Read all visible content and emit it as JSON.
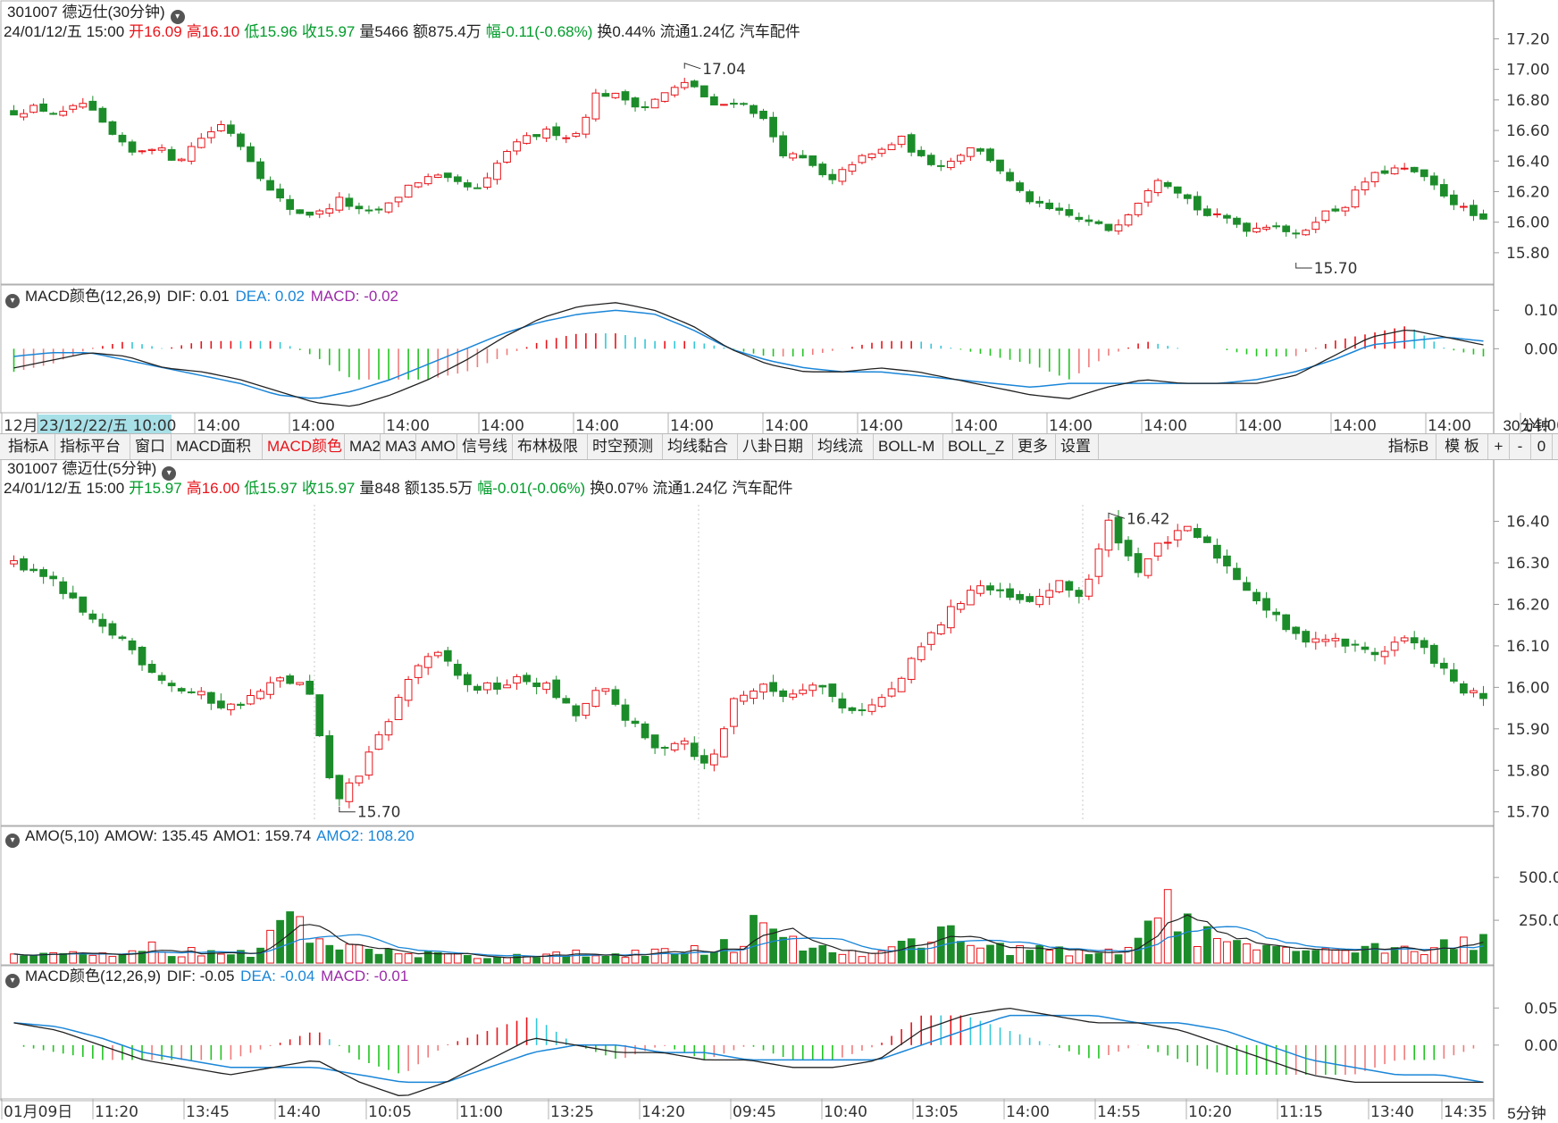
{
  "colors": {
    "up": "#e8141a",
    "down": "#1c8c2a",
    "dif": "#222222",
    "dea": "#1a86d8",
    "grid": "#cfcfcf",
    "axis": "#9a9a9a"
  },
  "top": {
    "title": "301007 德迈仕(30分钟)",
    "info": [
      {
        "t": "24/01/12/五 15:00",
        "c": "blk"
      },
      {
        "t": "开16.09",
        "c": "red"
      },
      {
        "t": "高16.10",
        "c": "red"
      },
      {
        "t": "低15.96",
        "c": "grn"
      },
      {
        "t": "收15.97",
        "c": "grn"
      },
      {
        "t": "量5466",
        "c": "blk"
      },
      {
        "t": "额875.4万",
        "c": "blk"
      },
      {
        "t": "幅-0.11(-0.68%)",
        "c": "grn"
      },
      {
        "t": "换0.44%",
        "c": "blk"
      },
      {
        "t": "流通1.24亿",
        "c": "blk"
      },
      {
        "t": "汽车配件",
        "c": "blk"
      }
    ],
    "hi_label": "17.04",
    "lo_label": "15.70",
    "macd_title": "MACD颜色(12,26,9)",
    "macd_dif": "DIF: 0.01",
    "macd_dea": "DEA: 0.02",
    "macd_macd": "MACD: -0.02",
    "period": "30分钟",
    "time_axis": [
      "12月",
      "23/12/22/五 10:00",
      "14:00",
      "14:00",
      "14:00",
      "14:00",
      "14:00",
      "14:00",
      "14:00",
      "14:00",
      "14:00",
      "14:00",
      "14:00",
      "14:00",
      "14:00",
      "14:00",
      "14:00"
    ]
  },
  "toolbar": {
    "left": [
      "指标A",
      "指标平台",
      "窗口",
      "MACD面积",
      "MACD颜色",
      "MA2",
      "MA3",
      "AMO",
      "信号线",
      "布林极限",
      "时空预测",
      "均线黏合",
      "八卦日期",
      "均线流",
      "BOLL-M",
      "BOLL_Z",
      "更多",
      "设置"
    ],
    "active": "MACD颜色",
    "right": [
      "指标B",
      "模 板",
      "+",
      "-",
      "0"
    ]
  },
  "bottom": {
    "title": "301007 德迈仕(5分钟)",
    "info": [
      {
        "t": "24/01/12/五 15:00",
        "c": "blk"
      },
      {
        "t": "开15.97",
        "c": "grn"
      },
      {
        "t": "高16.00",
        "c": "red"
      },
      {
        "t": "低15.97",
        "c": "grn"
      },
      {
        "t": "收15.97",
        "c": "grn"
      },
      {
        "t": "量848",
        "c": "blk"
      },
      {
        "t": "额135.5万",
        "c": "blk"
      },
      {
        "t": "幅-0.01(-0.06%)",
        "c": "grn"
      },
      {
        "t": "换0.07%",
        "c": "blk"
      },
      {
        "t": "流通1.24亿",
        "c": "blk"
      },
      {
        "t": "汽车配件",
        "c": "blk"
      }
    ],
    "hi_label": "16.42",
    "lo_label": "15.70",
    "amo_title": "AMO(5,10)",
    "amo_amow": "AMOW: 135.45",
    "amo_amo1": "AMO1: 159.74",
    "amo_amo2": "AMO2: 108.20",
    "macd_title": "MACD颜色(12,26,9)",
    "macd_dif": "DIF: -0.05",
    "macd_dea": "DEA: -0.04",
    "macd_macd": "MACD: -0.01",
    "period": "5分钟",
    "time_axis": [
      "01月09日",
      "11:20",
      "13:45",
      "14:40",
      "10:05",
      "11:00",
      "13:25",
      "14:20",
      "09:45",
      "10:40",
      "13:05",
      "14:00",
      "14:55",
      "10:20",
      "11:15",
      "13:40",
      "14:35"
    ]
  },
  "chart_data": [
    {
      "type": "candlestick",
      "title": "301007 德迈仕(30分钟)",
      "price_ticks": [
        "17.20",
        "17.00",
        "16.80",
        "16.60",
        "16.40",
        "16.20",
        "16.00",
        "15.80"
      ],
      "ylim": [
        15.7,
        17.22
      ],
      "anchors": [
        16.72,
        16.75,
        16.7,
        16.78,
        16.6,
        16.45,
        16.5,
        16.4,
        16.55,
        16.65,
        16.45,
        16.2,
        16.07,
        16.05,
        16.15,
        16.05,
        16.1,
        16.25,
        16.3,
        16.25,
        16.2,
        16.45,
        16.55,
        16.6,
        16.55,
        16.85,
        16.82,
        16.75,
        16.85,
        16.92,
        16.75,
        16.8,
        16.7,
        16.45,
        16.4,
        16.25,
        16.4,
        16.45,
        16.55,
        16.4,
        16.38,
        16.5,
        16.4,
        16.2,
        16.1,
        16.05,
        16.0,
        15.95,
        16.1,
        16.3,
        16.2,
        16.05,
        16.02,
        15.95,
        16.0,
        15.9,
        16.05,
        16.1,
        16.28,
        16.35,
        16.33,
        16.22,
        16.1,
        16.0
      ],
      "hi": {
        "price": 17.04,
        "label": "17.04"
      },
      "lo": {
        "price": 15.7,
        "label": "15.70"
      }
    },
    {
      "type": "macd",
      "ticks": [
        "0.10",
        "0.00"
      ],
      "ylim": [
        -0.15,
        0.14
      ],
      "dif_anchors": [
        -0.05,
        -0.03,
        -0.01,
        -0.02,
        -0.05,
        -0.06,
        -0.08,
        -0.11,
        -0.14,
        -0.15,
        -0.12,
        -0.08,
        -0.03,
        0.03,
        0.08,
        0.11,
        0.12,
        0.1,
        0.06,
        0.0,
        -0.04,
        -0.06,
        -0.06,
        -0.05,
        -0.06,
        -0.08,
        -0.1,
        -0.12,
        -0.13,
        -0.1,
        -0.08,
        -0.09,
        -0.09,
        -0.09,
        -0.07,
        -0.02,
        0.03,
        0.05,
        0.03,
        0.01
      ],
      "dea_anchors": [
        -0.02,
        -0.01,
        -0.01,
        -0.03,
        -0.05,
        -0.07,
        -0.09,
        -0.12,
        -0.13,
        -0.11,
        -0.08,
        -0.04,
        0.0,
        0.04,
        0.07,
        0.09,
        0.1,
        0.09,
        0.05,
        0.0,
        -0.03,
        -0.05,
        -0.06,
        -0.06,
        -0.07,
        -0.08,
        -0.09,
        -0.1,
        -0.09,
        -0.09,
        -0.09,
        -0.09,
        -0.09,
        -0.08,
        -0.06,
        -0.03,
        0.01,
        0.02,
        0.03,
        0.02
      ]
    },
    {
      "type": "candlestick",
      "title": "301007 德迈仕(5分钟)",
      "price_ticks": [
        "16.40",
        "16.30",
        "16.20",
        "16.10",
        "16.00",
        "15.90",
        "15.80",
        "15.70"
      ],
      "ylim": [
        15.68,
        16.44
      ],
      "anchors": [
        16.3,
        16.28,
        16.22,
        16.15,
        16.12,
        16.05,
        16.0,
        15.98,
        15.95,
        15.98,
        16.02,
        16.0,
        15.72,
        15.8,
        15.92,
        16.05,
        16.08,
        16.0,
        16.0,
        16.02,
        16.0,
        15.93,
        16.0,
        15.92,
        15.85,
        15.88,
        15.8,
        15.98,
        16.0,
        15.98,
        16.02,
        15.95,
        15.95,
        16.0,
        16.1,
        16.18,
        16.25,
        16.22,
        16.2,
        16.25,
        16.22,
        16.4,
        16.28,
        16.35,
        16.38,
        16.32,
        16.25,
        16.18,
        16.12,
        16.12,
        16.1,
        16.08,
        16.12,
        16.08,
        16.0,
        15.97
      ],
      "hi": {
        "price": 16.42,
        "label": "16.42"
      },
      "lo": {
        "price": 15.7,
        "label": "15.70"
      }
    },
    {
      "type": "bar",
      "title": "AMO(5,10)",
      "ticks": [
        "500.0",
        "250.0"
      ],
      "ylim": [
        0,
        720
      ],
      "vol_anchors": [
        40,
        60,
        50,
        60,
        50,
        100,
        60,
        80,
        70,
        60,
        300,
        160,
        90,
        80,
        60,
        60,
        50,
        40,
        50,
        60,
        40,
        60,
        70,
        60,
        80,
        60,
        90,
        120,
        300,
        150,
        80,
        70,
        60,
        90,
        140,
        200,
        130,
        90,
        80,
        70,
        60,
        60,
        120,
        400,
        200,
        140,
        100,
        70,
        80,
        60,
        90,
        120,
        80,
        70,
        140,
        150
      ],
      "amow": "135.45",
      "amo1": "159.74",
      "amo2": "108.20"
    },
    {
      "type": "macd",
      "ticks": [
        "0.05",
        "0.00"
      ],
      "ylim": [
        -0.07,
        0.09
      ],
      "dif_anchors": [
        0.03,
        0.02,
        0.0,
        -0.02,
        -0.03,
        -0.04,
        -0.03,
        -0.02,
        -0.05,
        -0.07,
        -0.05,
        -0.02,
        0.01,
        0.0,
        -0.01,
        -0.01,
        -0.02,
        -0.02,
        -0.03,
        -0.03,
        -0.02,
        0.02,
        0.04,
        0.05,
        0.04,
        0.03,
        0.03,
        0.02,
        0.0,
        -0.02,
        -0.04,
        -0.05,
        -0.05,
        -0.05,
        -0.05
      ],
      "dea_anchors": [
        0.03,
        0.025,
        0.01,
        -0.01,
        -0.02,
        -0.03,
        -0.03,
        -0.03,
        -0.04,
        -0.05,
        -0.05,
        -0.03,
        -0.01,
        0.0,
        0.0,
        -0.01,
        -0.01,
        -0.02,
        -0.02,
        -0.02,
        -0.02,
        0.0,
        0.02,
        0.04,
        0.04,
        0.04,
        0.03,
        0.03,
        0.02,
        0.0,
        -0.02,
        -0.03,
        -0.04,
        -0.04,
        -0.05
      ]
    }
  ]
}
